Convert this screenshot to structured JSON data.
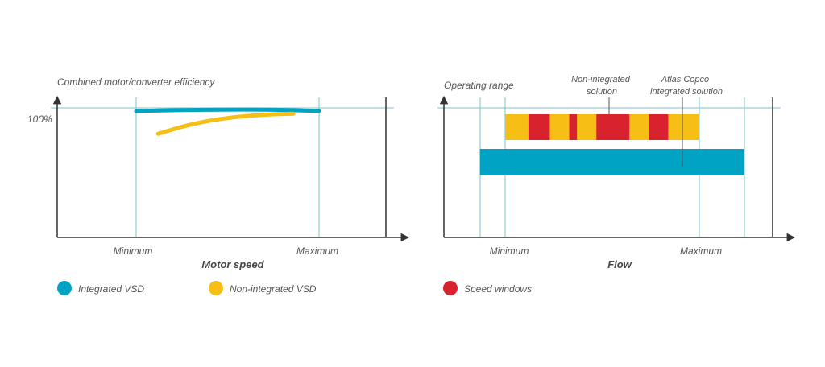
{
  "colors": {
    "teal": "#00a3c4",
    "yellow": "#f7bf16",
    "red": "#d8232f",
    "axis": "#333333",
    "guide": "#79c4cf",
    "text": "#555555"
  },
  "chart_data": [
    {
      "type": "line",
      "ylabel": "Combined motor/converter efficiency",
      "xlabel": "Motor speed",
      "y_tick_label": "100%",
      "x_tick_labels": [
        "Minimum",
        "Maximum"
      ],
      "x": [
        0,
        0.25,
        0.5,
        0.75,
        1.0
      ],
      "series": [
        {
          "name": "Integrated VSD",
          "color": "#00a3c4",
          "x": [
            0,
            0.25,
            0.5,
            0.75,
            1.0
          ],
          "values": [
            97.5,
            98.4,
            98.7,
            98.6,
            97.6
          ]
        },
        {
          "name": "Non-integrated VSD",
          "color": "#f7bf16",
          "x": [
            0.12,
            0.3,
            0.5,
            0.7,
            0.86
          ],
          "values": [
            80,
            87.5,
            92.5,
            94.8,
            95.5
          ]
        }
      ],
      "ylim": [
        0,
        100
      ],
      "xlim": [
        -0.45,
        1.5
      ],
      "grid": false
    },
    {
      "type": "bar",
      "ylabel": "Operating range",
      "xlabel": "Flow",
      "x_tick_labels": [
        "Minimum",
        "Maximum"
      ],
      "annotations": [
        "Non-integrated solution",
        "Atlas Copco integrated solution"
      ],
      "xlim": [
        -0.12,
        1.4
      ],
      "series": [
        {
          "name": "Non-integrated VSD",
          "color": "#f7bf16",
          "range": [
            0,
            1
          ]
        },
        {
          "name": "Integrated VSD",
          "color": "#00a3c4",
          "range": [
            -0.13,
            1.23
          ]
        },
        {
          "name": "Speed windows",
          "color": "#d8232f",
          "windows": [
            [
              0.12,
              0.23
            ],
            [
              0.33,
              0.37
            ],
            [
              0.47,
              0.64
            ],
            [
              0.74,
              0.84
            ]
          ]
        }
      ]
    }
  ],
  "legend": [
    {
      "label": "Integrated VSD",
      "color": "#00a3c4"
    },
    {
      "label": "Non-integrated VSD",
      "color": "#f7bf16"
    },
    {
      "label": "Speed windows",
      "color": "#d8232f"
    }
  ]
}
